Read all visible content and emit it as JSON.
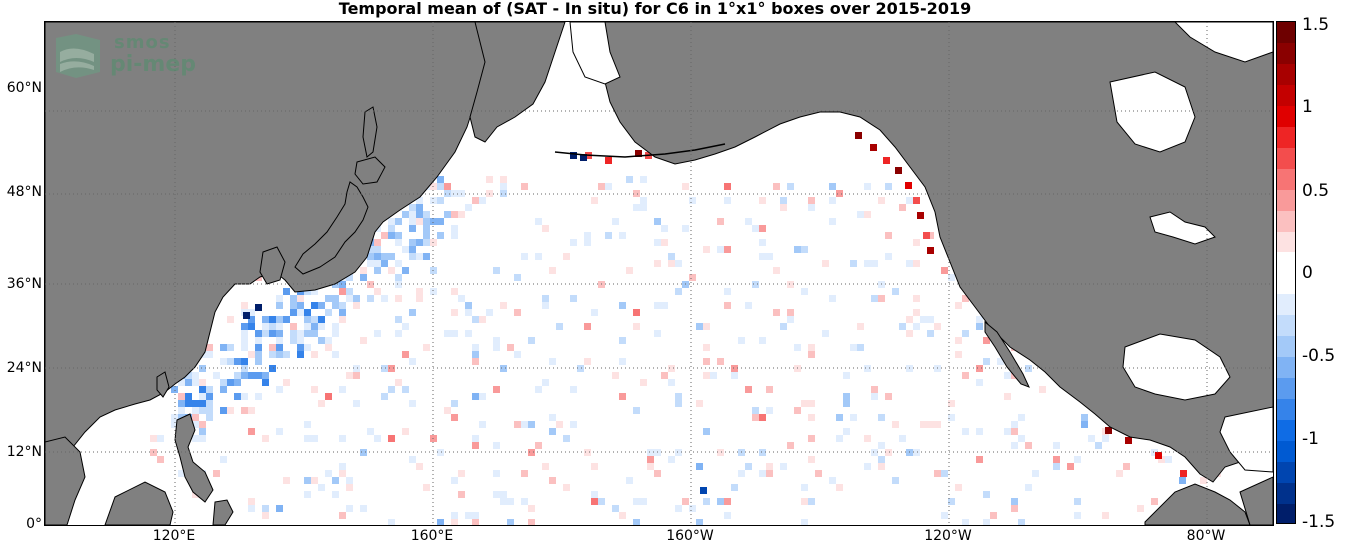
{
  "title": "Temporal mean of (SAT - In situ) for C6 in 1°x1° boxes over 2015-2019",
  "logo": {
    "line1": "smos",
    "line2": "pi-mep"
  },
  "colors": {
    "land": "#808080",
    "ocean": "#ffffff",
    "grid": "#666666",
    "coast": "#000000"
  },
  "latitude_labels": [
    "0°",
    "12°N",
    "24°N",
    "36°N",
    "48°N",
    "60°N"
  ],
  "longitude_labels": [
    "120°E",
    "160°E",
    "160°W",
    "120°W",
    "80°W"
  ],
  "colorbar": {
    "ticks": [
      "1.5",
      "1",
      "0.5",
      "0",
      "-0.5",
      "-1",
      "-1.5"
    ],
    "range": [
      -1.5,
      1.5
    ],
    "positive_colors": [
      "#fde2e2",
      "#fbc0c0",
      "#f99a9a",
      "#f77474",
      "#f34d4d",
      "#ee2525",
      "#e00000",
      "#c40000",
      "#a80000",
      "#8a0000",
      "#6e0000"
    ],
    "negative_colors": [
      "#e1edfd",
      "#c3dcfb",
      "#a3c9f8",
      "#80b3f4",
      "#5b9bef",
      "#3583ea",
      "#0f6ce5",
      "#005ad2",
      "#0045b0",
      "#00318c",
      "#001e6a"
    ]
  },
  "map": {
    "lon_range": [
      100,
      290
    ],
    "lat_range": [
      0,
      68
    ],
    "description_regions": [
      "North Pacific Ocean",
      "Asia",
      "North America"
    ]
  }
}
